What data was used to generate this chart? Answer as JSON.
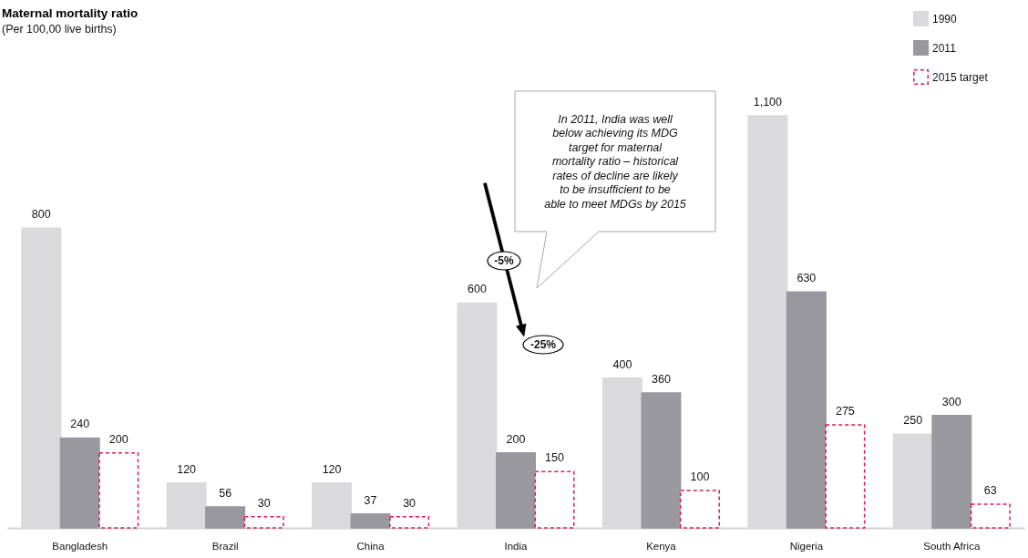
{
  "chart_data": {
    "type": "bar",
    "title": "Maternal mortality ratio",
    "subtitle": "(Per 100,00 live births)",
    "categories": [
      "Bangladesh",
      "Brazil",
      "China",
      "India",
      "Kenya",
      "Nigeria",
      "South Africa"
    ],
    "series": [
      {
        "name": "1990",
        "color": "#dadadc",
        "values": [
          800,
          120,
          120,
          600,
          400,
          1100,
          250
        ],
        "value_labels": [
          "800",
          "120",
          "120",
          "600",
          "400",
          "1,100",
          "250"
        ]
      },
      {
        "name": "2011",
        "color": "#99989e",
        "values": [
          240,
          56,
          37,
          200,
          360,
          630,
          300
        ],
        "value_labels": [
          "240",
          "56",
          "37",
          "200",
          "360",
          "630",
          "300"
        ]
      },
      {
        "name": "2015 target",
        "color": "#dc1e50",
        "line_style": "dashed",
        "values": [
          200,
          30,
          30,
          150,
          100,
          275,
          63
        ],
        "value_labels": [
          "200",
          "30",
          "30",
          "150",
          "100",
          "275",
          "63"
        ]
      }
    ],
    "legend": "top right",
    "annotations": [
      "In 2011, India was well below achieving its MDG target for maternal mortality ratio – historical rates of decline are likely to be insufficient to be able to meet MDGs by 2015",
      "-5%",
      "-25%"
    ]
  }
}
